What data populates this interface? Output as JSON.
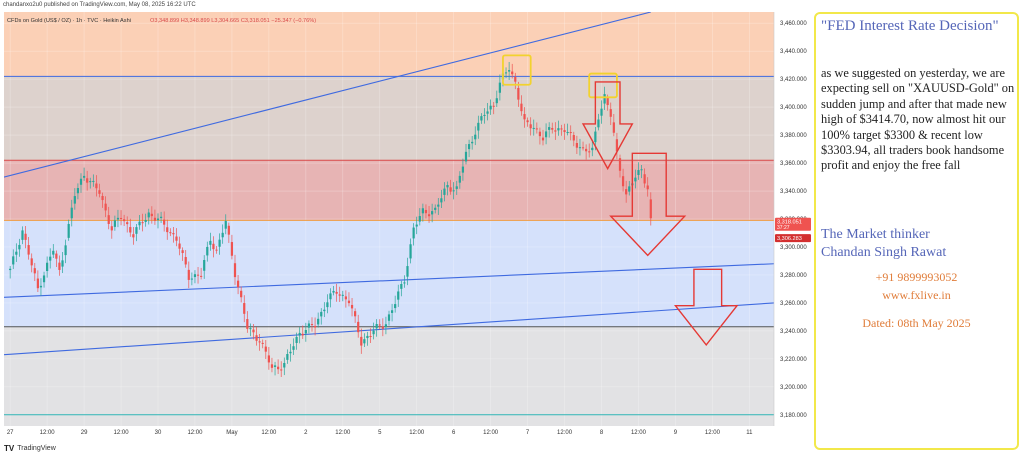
{
  "header": {
    "publish_line": "chandanxo2u0 published on TradingView.com, May 08, 2025 16:22 UTC",
    "symbol_line": "CFDs on Gold (US$ / OZ) · 1h · TVC · Heikin Ashi",
    "ohlc": "O3,348.899 H3,348.899 L3,304.665 C3,318.051 −25.347 (−0.76%)"
  },
  "logo": {
    "text": "TradingView",
    "mark": "TV"
  },
  "colors": {
    "up_candle": "#26a69a",
    "down_candle": "#ef5350",
    "zone_top": "#fbd0b6",
    "zone_upper": "#ddd2cd",
    "zone_red": "#e7b4b4",
    "zone_blue": "#d5e1fb",
    "zone_grey": "#e2e2e4",
    "trend_line": "#3f6ae0",
    "annotation_arrow": "#e53935",
    "annotation_box": "#f2d22e",
    "panel_border": "#f2e84a",
    "headline_text": "#5566b8",
    "contact_text": "#e07d3a"
  },
  "chart_data": {
    "type": "candlestick",
    "style": "Heikin Ashi",
    "timeframe": "1h",
    "ylim": [
      3172,
      3468
    ],
    "y_ticks": [
      3460,
      3440,
      3420,
      3400,
      3380,
      3360,
      3340,
      3320,
      3300,
      3280,
      3260,
      3240,
      3220,
      3200,
      3180
    ],
    "y_tick_labels": [
      "3,460.000",
      "3,440.000",
      "3,420.000",
      "3,400.000",
      "3,380.000",
      "3,360.000",
      "3,340.000",
      "3,320.000",
      "3,300.000",
      "3,280.000",
      "3,260.000",
      "3,240.000",
      "3,220.000",
      "3,200.000",
      "3,180.000"
    ],
    "x_ticks": [
      {
        "label": "27",
        "t": 0
      },
      {
        "label": "12:00",
        "t": 12
      },
      {
        "label": "29",
        "t": 24
      },
      {
        "label": "12:00",
        "t": 36
      },
      {
        "label": "30",
        "t": 48
      },
      {
        "label": "12:00",
        "t": 60
      },
      {
        "label": "May",
        "t": 72
      },
      {
        "label": "12:00",
        "t": 84
      },
      {
        "label": "2",
        "t": 96
      },
      {
        "label": "12:00",
        "t": 108
      },
      {
        "label": "5",
        "t": 120
      },
      {
        "label": "12:00",
        "t": 132
      },
      {
        "label": "6",
        "t": 144
      },
      {
        "label": "12:00",
        "t": 156
      },
      {
        "label": "7",
        "t": 168
      },
      {
        "label": "12:00",
        "t": 180
      },
      {
        "label": "8",
        "t": 192
      },
      {
        "label": "12:00",
        "t": 204
      },
      {
        "label": "9",
        "t": 216
      },
      {
        "label": "12:00",
        "t": 228
      },
      {
        "label": "11",
        "t": 240
      }
    ],
    "x_range": [
      -2,
      248
    ],
    "price_labels": [
      {
        "value": 3318.051,
        "text": "3,318.051",
        "sub": "37:27",
        "color": "#ef5350"
      },
      {
        "value": 3306.283,
        "text": "3,306.283",
        "color": "#d32f2f"
      }
    ],
    "zones": [
      {
        "from": 3422,
        "to": 3468,
        "color_key": "zone_top"
      },
      {
        "from": 3362,
        "to": 3422,
        "color_key": "zone_upper"
      },
      {
        "from": 3319,
        "to": 3362,
        "color_key": "zone_red"
      },
      {
        "from": 3243,
        "to": 3319,
        "color_key": "zone_blue"
      },
      {
        "from": 3172,
        "to": 3243,
        "color_key": "zone_grey"
      }
    ],
    "horizontal_lines": [
      {
        "value": 3422,
        "color": "#3f6ae0"
      },
      {
        "value": 3362,
        "color": "#d84a4a"
      },
      {
        "value": 3319,
        "color": "#f09a3e"
      },
      {
        "value": 3243,
        "color": "#555555"
      },
      {
        "value": 3180,
        "color": "#2fb5b5"
      }
    ],
    "trend_lines": [
      {
        "t1": -2,
        "v1": 3350,
        "t2": 208,
        "v2": 3468
      },
      {
        "t1": -2,
        "v1": 3264,
        "t2": 248,
        "v2": 3288
      },
      {
        "t1": -2,
        "v1": 3223,
        "t2": 248,
        "v2": 3260
      }
    ],
    "highlight_boxes": [
      {
        "t1": 160,
        "t2": 169,
        "v1": 3437,
        "v2": 3416
      },
      {
        "t1": 188,
        "t2": 197,
        "v1": 3424,
        "v2": 3407
      }
    ],
    "arrows": [
      {
        "t1": 190,
        "t2": 198,
        "tip_t": 194,
        "top": 3418,
        "shoulder": 3388,
        "tip": 3356,
        "half_width": 8
      },
      {
        "t1": 202,
        "t2": 213,
        "tip_t": 207,
        "top": 3367,
        "shoulder": 3322,
        "tip": 3294,
        "half_width": 12
      },
      {
        "t1": 222,
        "t2": 231,
        "tip_t": 226,
        "top": 3284,
        "shoulder": 3258,
        "tip": 3230,
        "half_width": 10
      }
    ],
    "anchors": [
      [
        0,
        3283
      ],
      [
        4,
        3312
      ],
      [
        9,
        3270
      ],
      [
        14,
        3298
      ],
      [
        16,
        3282
      ],
      [
        21,
        3337
      ],
      [
        24,
        3352
      ],
      [
        29,
        3339
      ],
      [
        33,
        3313
      ],
      [
        36,
        3322
      ],
      [
        40,
        3309
      ],
      [
        45,
        3324
      ],
      [
        49,
        3318
      ],
      [
        54,
        3306
      ],
      [
        58,
        3279
      ],
      [
        62,
        3280
      ],
      [
        65,
        3306
      ],
      [
        67,
        3297
      ],
      [
        70,
        3318
      ],
      [
        73,
        3282
      ],
      [
        77,
        3242
      ],
      [
        81,
        3234
      ],
      [
        85,
        3213
      ],
      [
        89,
        3216
      ],
      [
        94,
        3239
      ],
      [
        99,
        3244
      ],
      [
        103,
        3262
      ],
      [
        106,
        3268
      ],
      [
        110,
        3262
      ],
      [
        114,
        3232
      ],
      [
        118,
        3240
      ],
      [
        122,
        3246
      ],
      [
        125,
        3260
      ],
      [
        128,
        3277
      ],
      [
        131,
        3313
      ],
      [
        134,
        3325
      ],
      [
        138,
        3326
      ],
      [
        142,
        3344
      ],
      [
        145,
        3341
      ],
      [
        148,
        3367
      ],
      [
        151,
        3383
      ],
      [
        154,
        3395
      ],
      [
        157,
        3402
      ],
      [
        159,
        3417
      ],
      [
        162,
        3428
      ],
      [
        164,
        3418
      ],
      [
        167,
        3388
      ],
      [
        170,
        3386
      ],
      [
        173,
        3378
      ],
      [
        176,
        3385
      ],
      [
        180,
        3384
      ],
      [
        183,
        3376
      ],
      [
        186,
        3370
      ],
      [
        189,
        3368
      ],
      [
        191,
        3394
      ],
      [
        193,
        3408
      ],
      [
        195,
        3394
      ],
      [
        197,
        3366
      ],
      [
        200,
        3337
      ],
      [
        202,
        3346
      ],
      [
        205,
        3356
      ],
      [
        207,
        3342
      ],
      [
        208,
        3318
      ]
    ]
  },
  "annotation": {
    "headline": "\"FED Interest Rate Decision\"",
    "body": "as we suggested on yesterday, we are expecting sell on \"XAUUSD-Gold\" on sudden jump and after that made new high of $3414.70, now almost hit our 100% target $3300 & recent low $3303.94, all traders book handsome profit and enjoy the free fall",
    "org_line1": "The Market thinker",
    "org_line2": "Chandan Singh Rawat",
    "phone": "+91 9899993052",
    "website": "www.fxlive.in",
    "dated": "Dated: 08th May 2025"
  }
}
